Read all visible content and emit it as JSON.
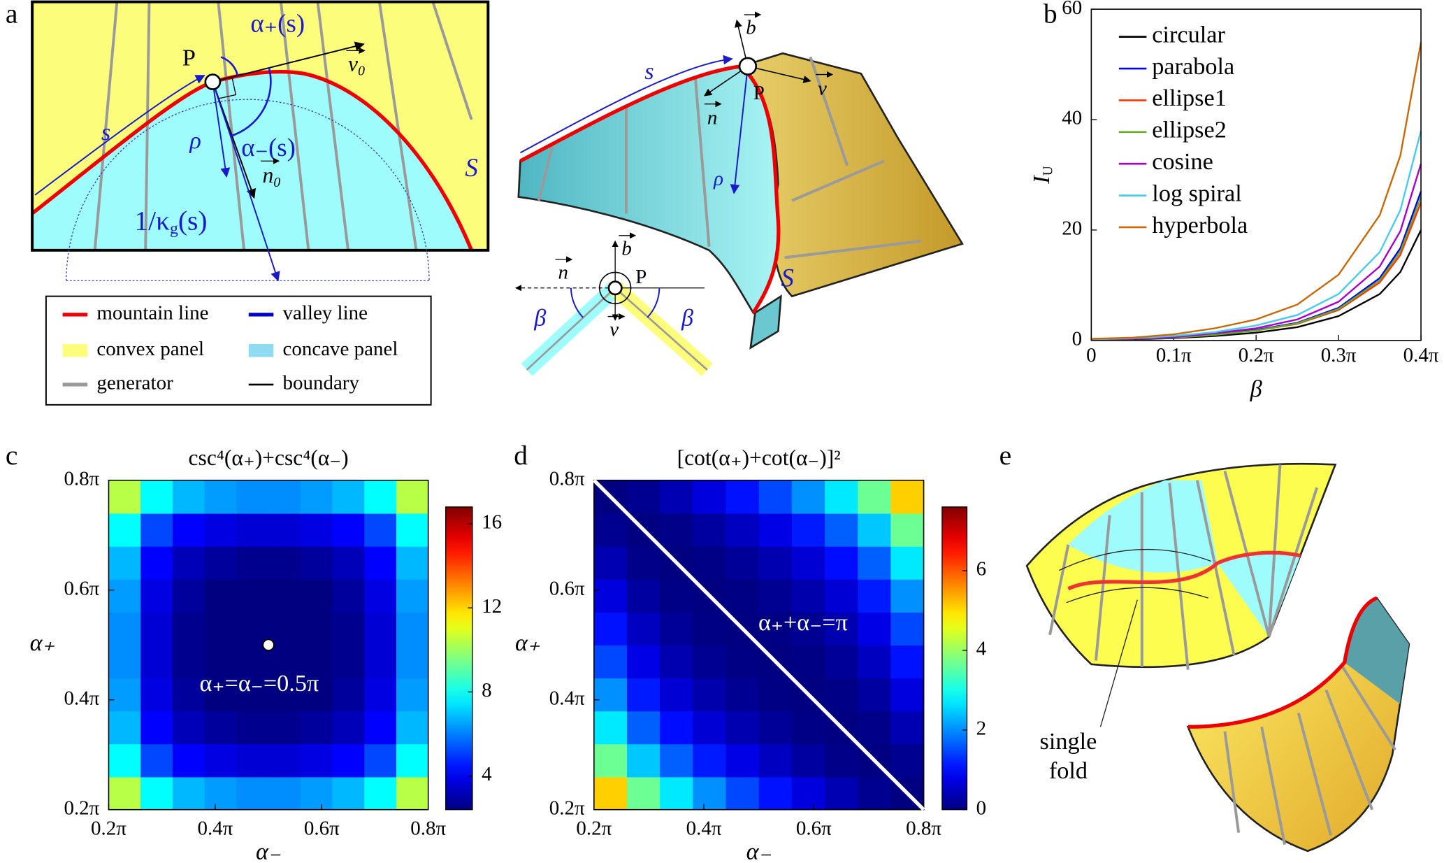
{
  "panel_labels": [
    "a",
    "b",
    "c",
    "d",
    "e"
  ],
  "panel_a": {
    "flat": {
      "alpha_plus": "α₊(s)",
      "P": "P",
      "v0": "v",
      "v0_sub": "0",
      "s": "s",
      "rho": "ρ",
      "alpha_minus": "α₋(s)",
      "n0": "n",
      "n0_sub": "0",
      "kappa": "1/κ",
      "kappa_sub": "g",
      "kappa_tail": "(s)",
      "S": "S"
    },
    "fold": {
      "s": "s",
      "b": "b",
      "P": "P",
      "n": "n",
      "v": "v",
      "rho": "ρ",
      "S": "S"
    },
    "section": {
      "n": "n",
      "b": "b",
      "P": "P",
      "beta_left": "β",
      "v": "v",
      "beta_right": "β"
    },
    "legend": [
      "mountain line",
      "valley line",
      "convex panel",
      "concave panel",
      "generator",
      "boundary"
    ]
  },
  "panel_e": {
    "label_lines": [
      "single",
      "fold"
    ]
  },
  "chart_data": [
    {
      "type": "line",
      "xlabel": "β",
      "ylabel": "I",
      "ylabel_sub": "U",
      "x": [
        0,
        0.05,
        0.1,
        0.15,
        0.2,
        0.25,
        0.3,
        0.35,
        0.375,
        0.4
      ],
      "xlim": [
        0,
        0.4
      ],
      "ylim": [
        0,
        60
      ],
      "xticks": [
        0,
        {
          "value": 0.1,
          "label": "0.1π"
        },
        {
          "value": 0.2,
          "label": "0.2π"
        },
        {
          "value": 0.3,
          "label": "0.3π"
        },
        {
          "value": 0.4,
          "label": "0.4π"
        }
      ],
      "yticks": [
        0,
        20,
        40,
        60
      ],
      "legend": "upper left",
      "series": [
        {
          "name": "circular",
          "color": "#000000",
          "values": [
            0.1,
            0.2,
            0.4,
            0.8,
            1.4,
            2.4,
            4.4,
            8.4,
            12.4,
            20
          ]
        },
        {
          "name": "parabola",
          "color": "#0000ff",
          "values": [
            0.1,
            0.3,
            0.5,
            1.1,
            1.9,
            3.2,
            5.9,
            11.3,
            16.7,
            27
          ]
        },
        {
          "name": "ellipse1",
          "color": "#ff3300",
          "values": [
            0.1,
            0.3,
            0.5,
            1,
            1.8,
            3,
            5.5,
            10.5,
            15.5,
            25
          ]
        },
        {
          "name": "ellipse2",
          "color": "#66aa22",
          "values": [
            0.1,
            0.3,
            0.5,
            1,
            1.8,
            3.1,
            5.7,
            10.9,
            16.1,
            26
          ]
        },
        {
          "name": "cosine",
          "color": "#aa00cc",
          "values": [
            0.2,
            0.3,
            0.6,
            1.3,
            2.2,
            3.8,
            7,
            13.4,
            19.8,
            32
          ]
        },
        {
          "name": "log spiral",
          "color": "#44ccee",
          "values": [
            0.2,
            0.4,
            0.8,
            1.5,
            2.7,
            4.6,
            8.4,
            16,
            23.6,
            38
          ]
        },
        {
          "name": "hyperbola",
          "color": "#cc6600",
          "values": [
            0.3,
            0.5,
            1.1,
            2.2,
            3.8,
            6.5,
            11.9,
            22.7,
            33.5,
            54
          ]
        }
      ]
    },
    {
      "type": "heatmap",
      "title": "csc⁴(α₊)+csc⁴(α₋)",
      "xlabel": "α₋",
      "ylabel": "α₊",
      "colormap": "jet",
      "x": [
        0.23,
        0.29,
        0.35,
        0.41,
        0.47,
        0.53,
        0.59,
        0.65,
        0.71,
        0.77
      ],
      "y": [
        0.23,
        0.29,
        0.35,
        0.41,
        0.47,
        0.53,
        0.59,
        0.65,
        0.71,
        0.77
      ],
      "xlim": [
        0.2,
        0.8
      ],
      "ylim": [
        0.2,
        0.8
      ],
      "xticks": [
        {
          "value": 0.2,
          "label": "0.2π"
        },
        {
          "value": 0.4,
          "label": "0.4π"
        },
        {
          "value": 0.6,
          "label": "0.6π"
        },
        {
          "value": 0.8,
          "label": "0.8π"
        }
      ],
      "yticks": [
        {
          "value": 0.2,
          "label": "0.2π"
        },
        {
          "value": 0.4,
          "label": "0.4π"
        },
        {
          "value": 0.6,
          "label": "0.6π"
        },
        {
          "value": 0.8,
          "label": "0.8π"
        }
      ],
      "clim": [
        2.4,
        16.8
      ],
      "cticks": [
        4,
        8,
        12,
        16
      ],
      "values": [
        [
          10.4,
          7.8,
          6.8,
          6.4,
          6.2,
          6.2,
          6.4,
          6.8,
          7.8,
          10.4
        ],
        [
          7.8,
          5.2,
          4.2,
          3.8,
          3.6,
          3.6,
          3.8,
          4.2,
          5.2,
          7.8
        ],
        [
          6.8,
          4.2,
          3.2,
          2.8,
          2.6,
          2.6,
          2.8,
          3.2,
          4.2,
          6.8
        ],
        [
          6.4,
          3.8,
          2.8,
          2.4,
          2.2,
          2.2,
          2.4,
          2.8,
          3.8,
          6.4
        ],
        [
          6.2,
          3.6,
          2.6,
          2.2,
          2.0,
          2.0,
          2.2,
          2.6,
          3.6,
          6.2
        ],
        [
          6.2,
          3.6,
          2.6,
          2.2,
          2.0,
          2.0,
          2.2,
          2.6,
          3.6,
          6.2
        ],
        [
          6.4,
          3.8,
          2.8,
          2.4,
          2.2,
          2.2,
          2.4,
          2.8,
          3.8,
          6.4
        ],
        [
          6.8,
          4.2,
          3.2,
          2.8,
          2.6,
          2.6,
          2.8,
          3.2,
          4.2,
          6.8
        ],
        [
          7.8,
          5.2,
          4.2,
          3.8,
          3.6,
          3.6,
          3.8,
          4.2,
          5.2,
          7.8
        ],
        [
          10.4,
          7.8,
          6.8,
          6.4,
          6.2,
          6.2,
          6.4,
          6.8,
          7.8,
          10.4
        ]
      ],
      "marker": {
        "x": 0.5,
        "y": 0.5
      },
      "annotation": "α₊=α₋=0.5π"
    },
    {
      "type": "heatmap",
      "title": "[cot(α₊)+cot(α₋)]²",
      "xlabel": "α₋",
      "ylabel": "α₊",
      "colormap": "jet",
      "x": [
        0.23,
        0.29,
        0.35,
        0.41,
        0.47,
        0.53,
        0.59,
        0.65,
        0.71,
        0.77
      ],
      "y": [
        0.23,
        0.29,
        0.35,
        0.41,
        0.47,
        0.53,
        0.59,
        0.65,
        0.71,
        0.77
      ],
      "xlim": [
        0.2,
        0.8
      ],
      "ylim": [
        0.2,
        0.8
      ],
      "xticks": [
        {
          "value": 0.2,
          "label": "0.2π"
        },
        {
          "value": 0.4,
          "label": "0.4π"
        },
        {
          "value": 0.6,
          "label": "0.6π"
        },
        {
          "value": 0.8,
          "label": "0.8π"
        }
      ],
      "yticks": [
        {
          "value": 0.2,
          "label": "0.2π"
        },
        {
          "value": 0.4,
          "label": "0.4π"
        },
        {
          "value": 0.6,
          "label": "0.6π"
        },
        {
          "value": 0.8,
          "label": "0.8π"
        }
      ],
      "clim": [
        0,
        7.6
      ],
      "cticks": [
        0,
        2,
        4,
        6
      ],
      "values": [
        [
          5.11,
          3.65,
          2.69,
          2.02,
          1.49,
          1.08,
          0.71,
          0.38,
          0.12,
          0
        ],
        [
          3.65,
          2.43,
          1.66,
          1.14,
          0.76,
          0.48,
          0.24,
          0.07,
          0,
          0.12
        ],
        [
          2.69,
          1.66,
          1.04,
          0.64,
          0.36,
          0.18,
          0.05,
          0,
          0.07,
          0.38
        ],
        [
          2.02,
          1.14,
          0.64,
          0.34,
          0.14,
          0.04,
          0,
          0.05,
          0.24,
          0.71
        ],
        [
          1.49,
          0.76,
          0.36,
          0.14,
          0.03,
          0,
          0.04,
          0.18,
          0.48,
          1.08
        ],
        [
          1.08,
          0.48,
          0.18,
          0.04,
          0,
          0.03,
          0.14,
          0.36,
          0.76,
          1.49
        ],
        [
          0.71,
          0.24,
          0.05,
          0,
          0.04,
          0.14,
          0.34,
          0.64,
          1.14,
          2.02
        ],
        [
          0.38,
          0.07,
          0,
          0.05,
          0.18,
          0.36,
          0.64,
          1.04,
          1.66,
          2.69
        ],
        [
          0.12,
          0,
          0.07,
          0.24,
          0.48,
          0.76,
          1.14,
          1.66,
          2.43,
          3.65
        ],
        [
          0,
          0.12,
          0.38,
          0.71,
          1.08,
          1.49,
          2.02,
          2.69,
          3.65,
          5.11
        ]
      ],
      "line": {
        "x": [
          0.2,
          0.8
        ],
        "y": [
          0.8,
          0.2
        ]
      },
      "annotation": "α₊+α₋=π"
    }
  ]
}
